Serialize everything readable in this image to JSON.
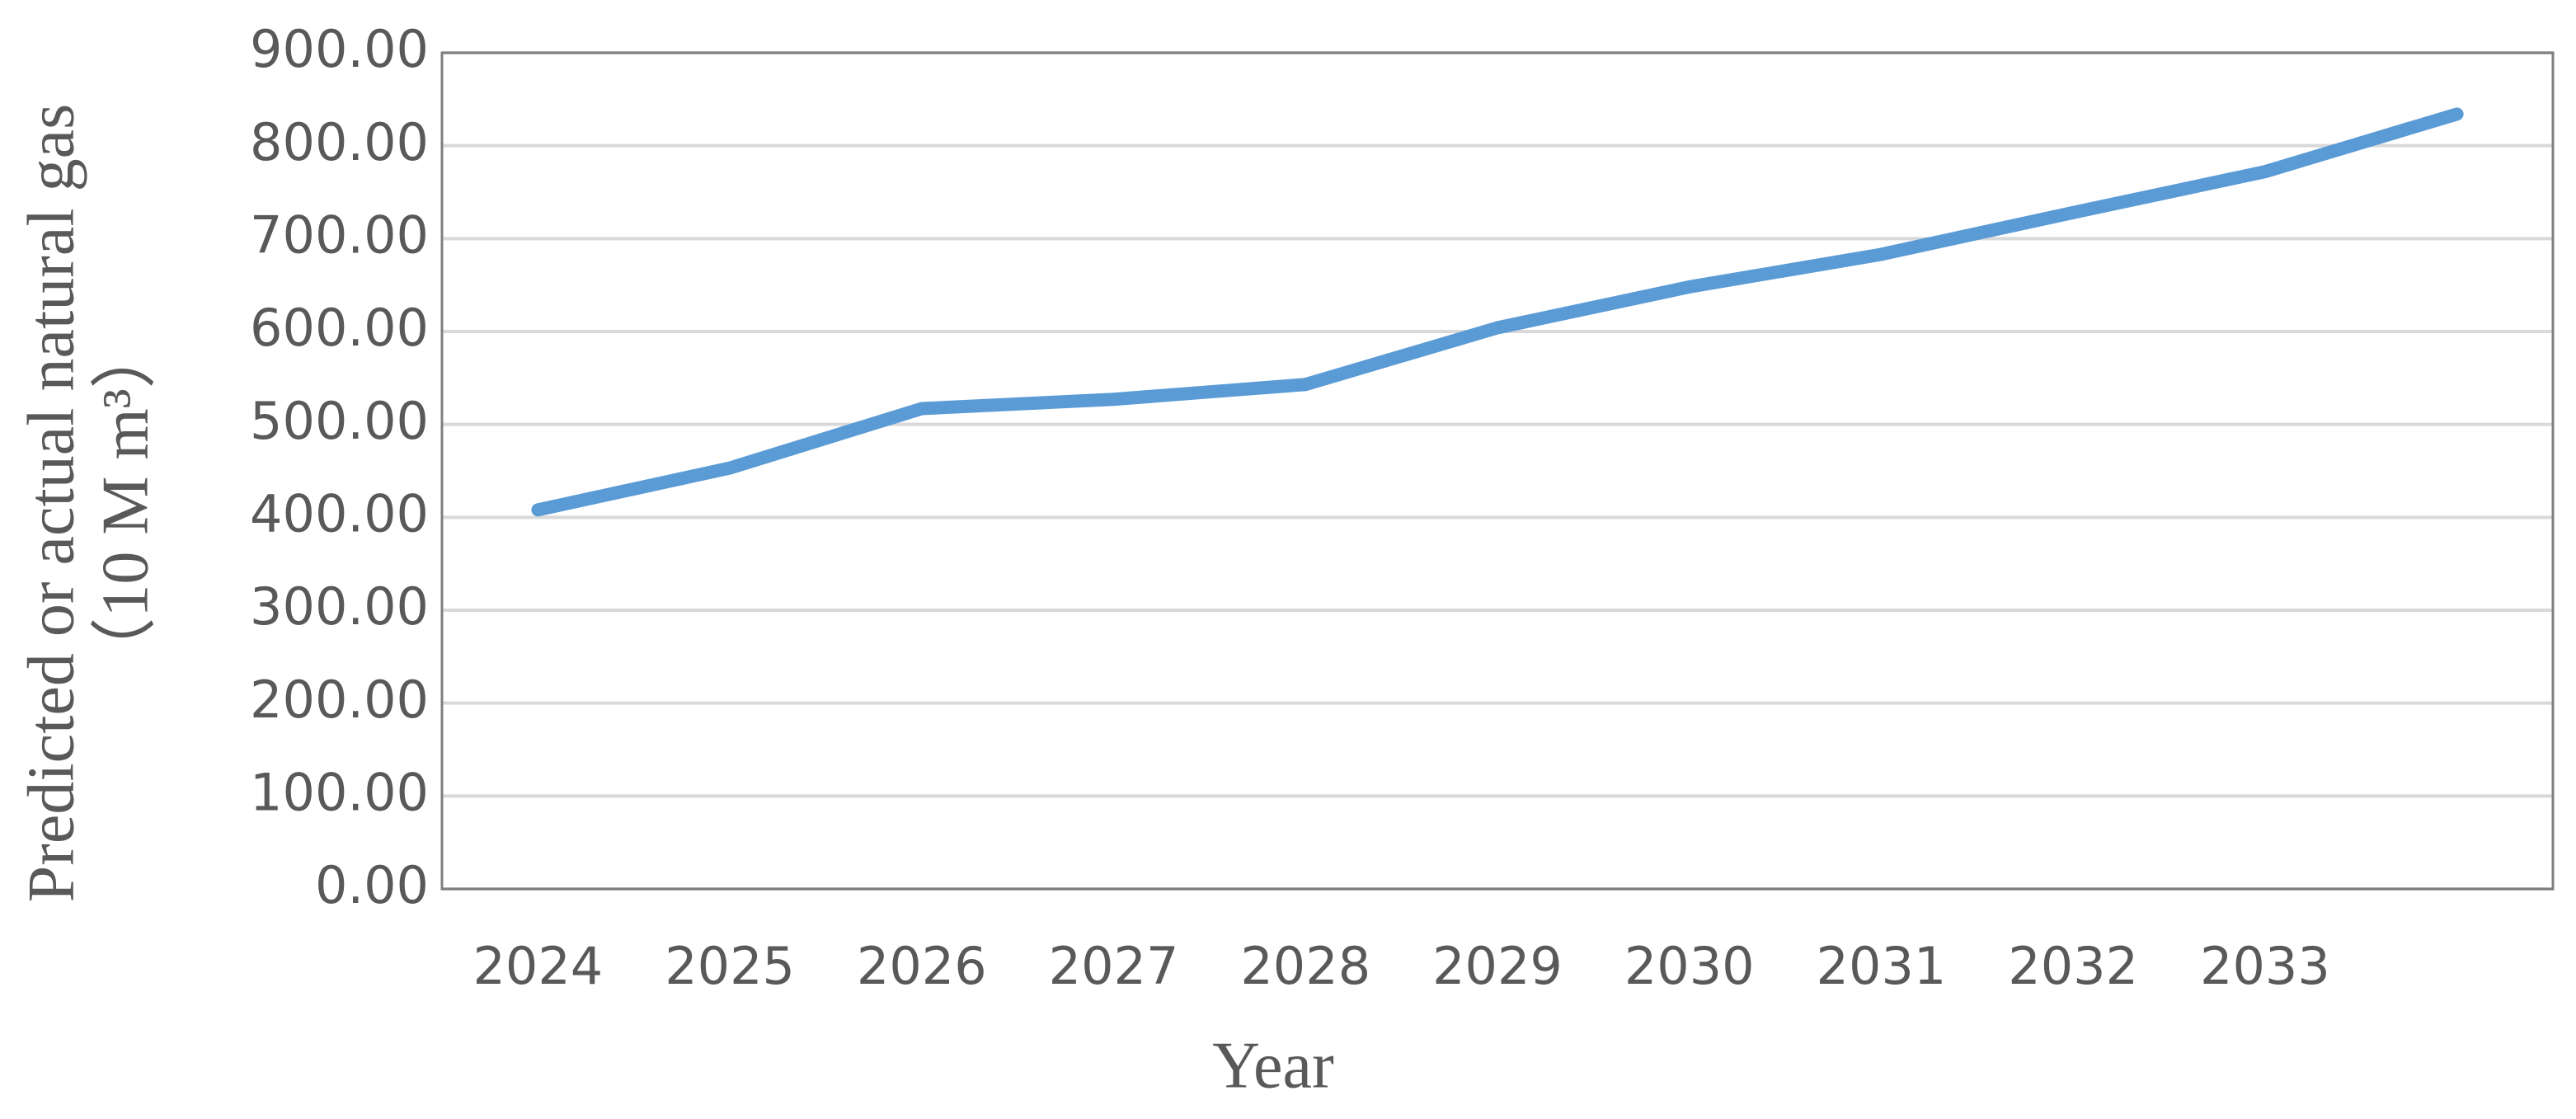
{
  "chart_data": {
    "type": "line",
    "x_label": "Year",
    "y_label": [
      "Predicted or actual natural gas",
      "（10 M m³）"
    ],
    "categories": [
      "2024",
      "2025",
      "2026",
      "2027",
      "2028",
      "2029",
      "2030",
      "2031",
      "2032",
      "2033",
      null
    ],
    "series": [
      {
        "color": "#5b9bd5",
        "values": [
          408,
          453,
          517,
          527,
          543,
          604,
          648,
          683,
          728,
          772,
          834
        ]
      }
    ],
    "ylim": [
      0,
      900
    ],
    "yticks": [
      {
        "value": 0,
        "label": "0.00"
      },
      {
        "value": 100,
        "label": "100.00"
      },
      {
        "value": 200,
        "label": "200.00"
      },
      {
        "value": 300,
        "label": "300.00"
      },
      {
        "value": 400,
        "label": "400.00"
      },
      {
        "value": 500,
        "label": "500.00"
      },
      {
        "value": 600,
        "label": "600.00"
      },
      {
        "value": 700,
        "label": "700.00"
      },
      {
        "value": 800,
        "label": "800.00"
      },
      {
        "value": 900,
        "label": "900.00"
      }
    ],
    "grid": true
  }
}
